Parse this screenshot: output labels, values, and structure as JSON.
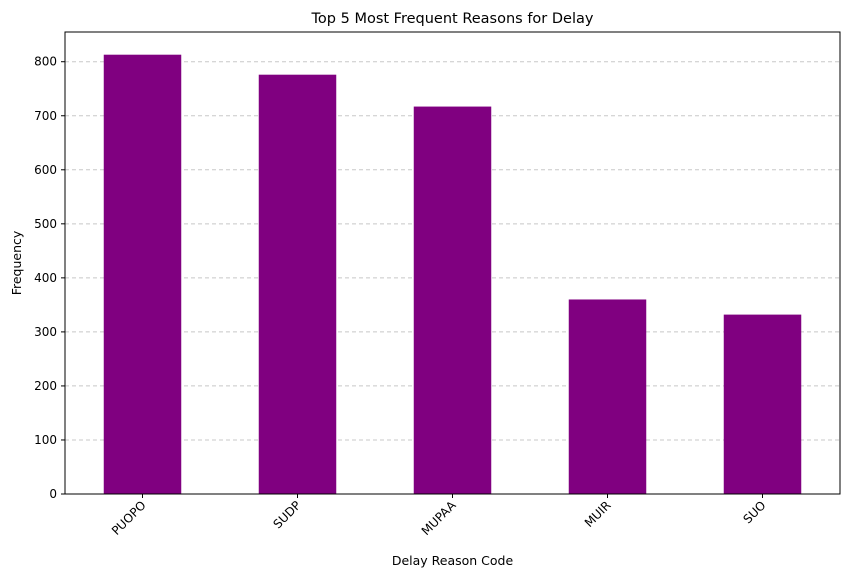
{
  "chart_data": {
    "type": "bar",
    "title": "Top 5 Most Frequent Reasons for Delay",
    "xlabel": "Delay Reason Code",
    "ylabel": "Frequency",
    "categories": [
      "PUOPO",
      "SUDP",
      "MUPAA",
      "MUIR",
      "SUO"
    ],
    "values": [
      813,
      776,
      717,
      360,
      332
    ],
    "ylim": [
      0,
      855
    ],
    "yticks": [
      0,
      100,
      200,
      300,
      400,
      500,
      600,
      700,
      800
    ],
    "grid": "y-dashed",
    "bar_color": "#800080"
  }
}
